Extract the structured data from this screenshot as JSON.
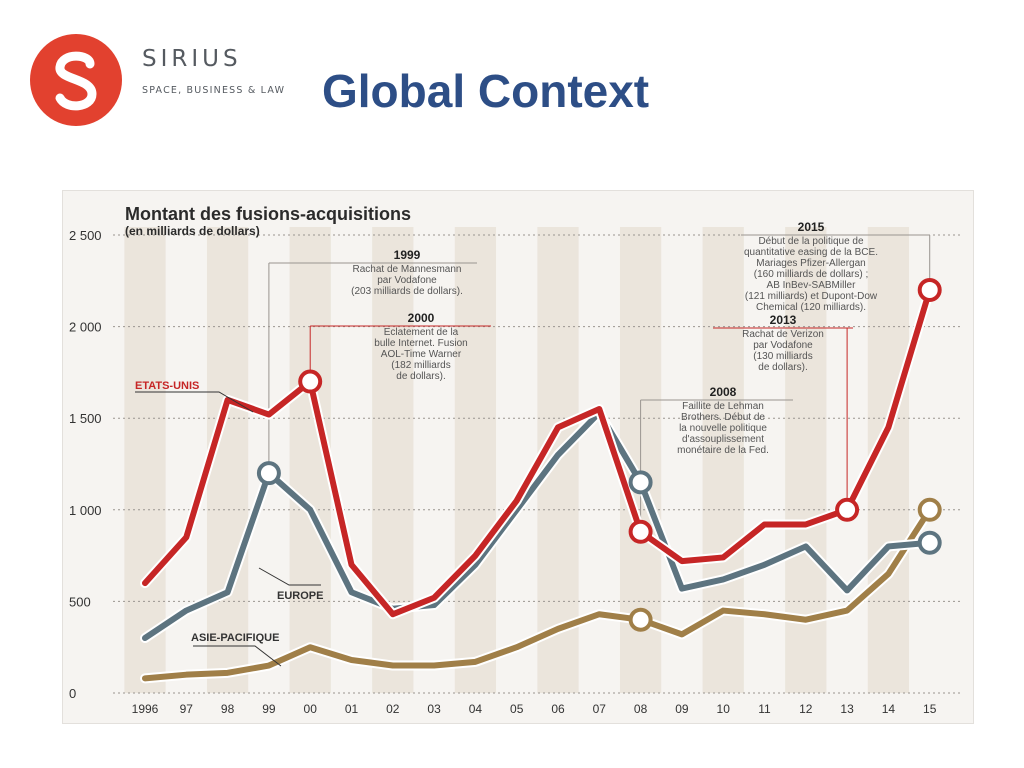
{
  "brand": {
    "name": "SIRIUS",
    "tagline": "SPACE, BUSINESS & LAW"
  },
  "page": {
    "title": "Global Context"
  },
  "colors": {
    "title": "#2d4e86",
    "logo": "#e2412f",
    "etats_unis": "#c62626",
    "europe": "#5d7480",
    "asie_pacifique": "#a07f48"
  },
  "chart_data": {
    "type": "line",
    "title": "Montant des fusions-acquisitions",
    "subtitle": "(en milliards de dollars)",
    "x": [
      "1996",
      "97",
      "98",
      "99",
      "00",
      "01",
      "02",
      "03",
      "04",
      "05",
      "06",
      "07",
      "08",
      "09",
      "10",
      "11",
      "12",
      "13",
      "14",
      "15"
    ],
    "ylim": [
      0,
      2500
    ],
    "yticks": [
      0,
      500,
      1000,
      1500,
      2000,
      2500
    ],
    "series": [
      {
        "name": "ETATS-UNIS",
        "values": [
          600,
          850,
          1600,
          1520,
          1700,
          700,
          430,
          520,
          750,
          1050,
          1450,
          1550,
          880,
          720,
          740,
          920,
          920,
          1000,
          1450,
          2200
        ],
        "markers": [
          4,
          12,
          17,
          19
        ]
      },
      {
        "name": "EUROPE",
        "values": [
          300,
          450,
          550,
          1200,
          1000,
          550,
          460,
          480,
          700,
          1000,
          1300,
          1530,
          1150,
          570,
          620,
          700,
          800,
          560,
          800,
          820
        ],
        "markers": [
          3,
          12,
          19
        ]
      },
      {
        "name": "ASIE-PACIFIQUE",
        "values": [
          80,
          100,
          110,
          150,
          250,
          180,
          150,
          150,
          170,
          250,
          350,
          430,
          400,
          320,
          450,
          430,
          400,
          450,
          650,
          1000
        ],
        "markers": [
          12,
          19
        ]
      }
    ],
    "annotations": [
      {
        "year": "1999",
        "text": [
          "Rachat de Mannesmann",
          "par Vodafone",
          "(203 milliards de dollars)."
        ]
      },
      {
        "year": "2000",
        "text": [
          "Eclatement de la",
          "bulle Internet. Fusion",
          "AOL-Time Warner",
          "(182 milliards",
          "de dollars)."
        ]
      },
      {
        "year": "2008",
        "text": [
          "Faillite de Lehman",
          "Brothers. Début de",
          "la nouvelle politique",
          "d'assouplissement",
          "monétaire de la Fed."
        ]
      },
      {
        "year": "2013",
        "text": [
          "Rachat de Verizon",
          "par Vodafone",
          "(130 milliards",
          "de dollars)."
        ]
      },
      {
        "year": "2015",
        "text": [
          "Début de la politique de",
          "quantitative easing de la BCE.",
          "Mariages Pfizer-Allergan",
          "(160 milliards de dollars) ;",
          "AB InBev-SABMiller",
          "(121 milliards) et Dupont-Dow",
          "Chemical (120 milliards)."
        ]
      }
    ]
  }
}
